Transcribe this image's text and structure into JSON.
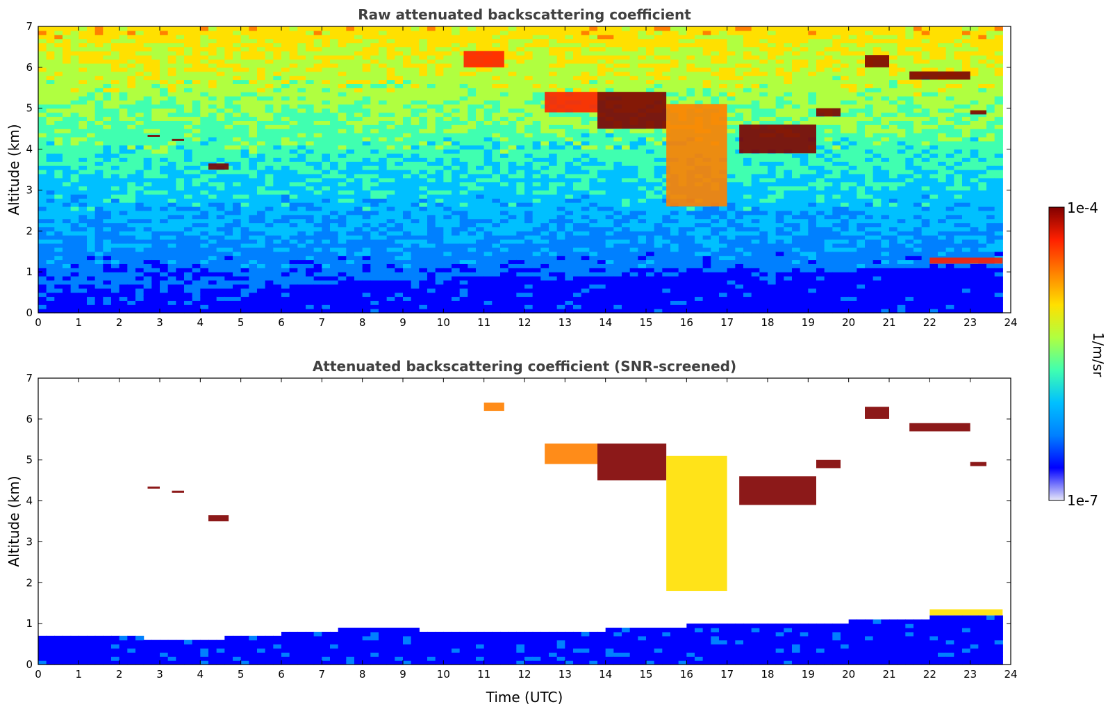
{
  "chart_data": [
    {
      "type": "heatmap",
      "title": "Raw attenuated backscattering coefficient",
      "xlabel": "",
      "ylabel": "Altitude (km)",
      "xlim": [
        0,
        24
      ],
      "ylim": [
        0,
        7
      ],
      "x_ticks": [
        "0",
        "1",
        "2",
        "3",
        "4",
        "5",
        "6",
        "7",
        "8",
        "9",
        "10",
        "11",
        "12",
        "13",
        "14",
        "15",
        "16",
        "17",
        "18",
        "19",
        "20",
        "21",
        "22",
        "23",
        "24"
      ],
      "y_ticks": [
        "0",
        "1",
        "2",
        "3",
        "4",
        "5",
        "6",
        "7"
      ],
      "data_extent_x": [
        0,
        23.8
      ],
      "boundary_layer_top_km": [
        [
          0,
          0.45
        ],
        [
          4,
          0.45
        ],
        [
          8,
          0.7
        ],
        [
          12,
          0.85
        ],
        [
          16,
          0.9
        ],
        [
          20,
          1.0
        ],
        [
          23.8,
          1.1
        ]
      ],
      "features": [
        {
          "kind": "cloud",
          "x": [
            2.7,
            3.0
          ],
          "alt_km": [
            4.3,
            4.35
          ],
          "intensity": 1.0
        },
        {
          "kind": "cloud",
          "x": [
            3.3,
            3.6
          ],
          "alt_km": [
            4.2,
            4.25
          ],
          "intensity": 1.0
        },
        {
          "kind": "cloud",
          "x": [
            4.2,
            4.7
          ],
          "alt_km": [
            3.5,
            3.65
          ],
          "intensity": 1.0
        },
        {
          "kind": "cloud",
          "x": [
            10.5,
            11.5
          ],
          "alt_km": [
            6.0,
            6.4
          ],
          "intensity": 0.9
        },
        {
          "kind": "cloud",
          "x": [
            12.5,
            13.8
          ],
          "alt_km": [
            4.9,
            5.4
          ],
          "intensity": 0.95
        },
        {
          "kind": "cloud",
          "x": [
            13.8,
            15.5
          ],
          "alt_km": [
            4.5,
            5.4
          ],
          "intensity": 1.0
        },
        {
          "kind": "cloud",
          "x": [
            15.5,
            17.0
          ],
          "alt_km": [
            2.6,
            5.1
          ],
          "intensity": 0.85
        },
        {
          "kind": "cloud",
          "x": [
            17.3,
            19.2
          ],
          "alt_km": [
            3.9,
            4.6
          ],
          "intensity": 1.0
        },
        {
          "kind": "cloud",
          "x": [
            19.2,
            19.8
          ],
          "alt_km": [
            4.8,
            5.0
          ],
          "intensity": 1.0
        },
        {
          "kind": "cloud",
          "x": [
            20.4,
            21.0
          ],
          "alt_km": [
            6.0,
            6.3
          ],
          "intensity": 1.0
        },
        {
          "kind": "cloud",
          "x": [
            21.5,
            23.0
          ],
          "alt_km": [
            5.7,
            5.9
          ],
          "intensity": 1.0
        },
        {
          "kind": "cloud",
          "x": [
            23.0,
            23.4
          ],
          "alt_km": [
            4.85,
            4.95
          ],
          "intensity": 1.0
        },
        {
          "kind": "cloud",
          "x": [
            22.0,
            23.8
          ],
          "alt_km": [
            1.2,
            1.35
          ],
          "intensity": 0.9
        }
      ]
    },
    {
      "type": "heatmap",
      "title": "Attenuated backscattering coefficient (SNR-screened)",
      "xlabel": "Time (UTC)",
      "ylabel": "Altitude (km)",
      "xlim": [
        0,
        24
      ],
      "ylim": [
        0,
        7
      ],
      "x_ticks": [
        "0",
        "1",
        "2",
        "3",
        "4",
        "5",
        "6",
        "7",
        "8",
        "9",
        "10",
        "11",
        "12",
        "13",
        "14",
        "15",
        "16",
        "17",
        "18",
        "19",
        "20",
        "21",
        "22",
        "23",
        "24"
      ],
      "y_ticks": [
        "0",
        "1",
        "2",
        "3",
        "4",
        "5",
        "6",
        "7"
      ],
      "data_extent_x": [
        0,
        23.8
      ],
      "boundary_layer_top_km": [
        [
          0,
          0.7
        ],
        [
          4,
          0.55
        ],
        [
          8,
          0.85
        ],
        [
          12,
          0.7
        ],
        [
          16,
          0.9
        ],
        [
          20,
          1.0
        ],
        [
          23.8,
          1.2
        ]
      ],
      "features": [
        {
          "kind": "cloud",
          "x": [
            2.7,
            3.0
          ],
          "alt_km": [
            4.3,
            4.35
          ],
          "intensity": 1.0
        },
        {
          "kind": "cloud",
          "x": [
            3.3,
            3.6
          ],
          "alt_km": [
            4.2,
            4.25
          ],
          "intensity": 1.0
        },
        {
          "kind": "cloud",
          "x": [
            4.2,
            4.7
          ],
          "alt_km": [
            3.5,
            3.65
          ],
          "intensity": 1.0
        },
        {
          "kind": "cloud",
          "x": [
            11.0,
            11.5
          ],
          "alt_km": [
            6.2,
            6.4
          ],
          "intensity": 0.85
        },
        {
          "kind": "cloud",
          "x": [
            12.5,
            13.8
          ],
          "alt_km": [
            4.9,
            5.4
          ],
          "intensity": 0.85
        },
        {
          "kind": "cloud",
          "x": [
            13.8,
            15.5
          ],
          "alt_km": [
            4.5,
            5.4
          ],
          "intensity": 1.0
        },
        {
          "kind": "cloud",
          "x": [
            15.5,
            17.0
          ],
          "alt_km": [
            1.8,
            5.1
          ],
          "intensity": 0.75
        },
        {
          "kind": "cloud",
          "x": [
            17.3,
            19.2
          ],
          "alt_km": [
            3.9,
            4.6
          ],
          "intensity": 1.0
        },
        {
          "kind": "cloud",
          "x": [
            19.2,
            19.8
          ],
          "alt_km": [
            4.8,
            5.0
          ],
          "intensity": 1.0
        },
        {
          "kind": "cloud",
          "x": [
            20.4,
            21.0
          ],
          "alt_km": [
            6.0,
            6.3
          ],
          "intensity": 1.0
        },
        {
          "kind": "cloud",
          "x": [
            21.5,
            23.0
          ],
          "alt_km": [
            5.7,
            5.9
          ],
          "intensity": 1.0
        },
        {
          "kind": "cloud",
          "x": [
            23.0,
            23.4
          ],
          "alt_km": [
            4.85,
            4.95
          ],
          "intensity": 1.0
        },
        {
          "kind": "cloud",
          "x": [
            22.0,
            23.8
          ],
          "alt_km": [
            1.2,
            1.35
          ],
          "intensity": 0.7
        }
      ]
    }
  ],
  "colorbar": {
    "min_label": "1e-7",
    "max_label": "1e-4",
    "label": "1/m/sr",
    "colormap": [
      "#e8e8f8",
      "#0000ff",
      "#0080ff",
      "#00c0ff",
      "#40ffb0",
      "#b0ff40",
      "#ffe000",
      "#ff8000",
      "#ff2000",
      "#800000"
    ]
  }
}
